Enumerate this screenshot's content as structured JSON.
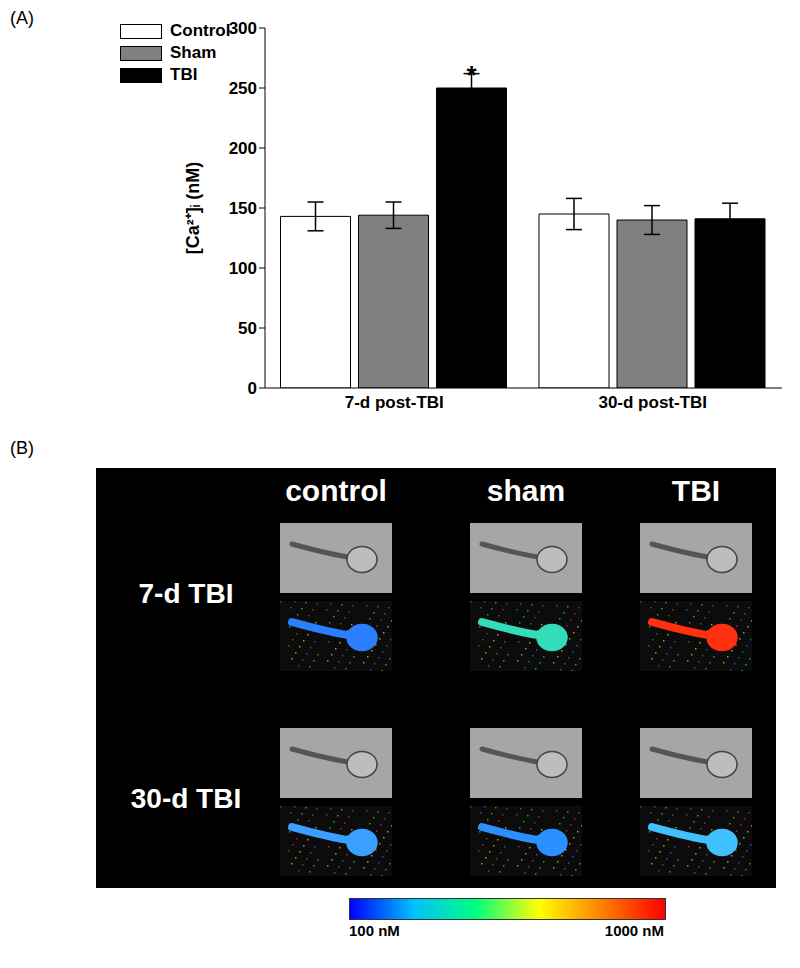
{
  "chart_data": {
    "type": "bar",
    "panel_label": "(A)",
    "y_label": "[Ca²⁺]ᵢ (nM)",
    "categories": [
      "7-d post-TBI",
      "30-d post-TBI"
    ],
    "series": [
      {
        "name": "Control",
        "color": "#ffffff",
        "values": [
          143,
          145
        ],
        "errors": [
          12,
          13
        ]
      },
      {
        "name": "Sham",
        "color": "#808080",
        "values": [
          144,
          140
        ],
        "errors": [
          11,
          12
        ]
      },
      {
        "name": "TBI",
        "color": "#000000",
        "values": [
          250,
          141
        ],
        "errors": [
          12,
          13
        ]
      }
    ],
    "ylim": [
      0,
      300
    ],
    "yticks": [
      0,
      50,
      100,
      150,
      200,
      250,
      300
    ],
    "legend": "upper left",
    "grid": false,
    "annotations": [
      {
        "text": "*",
        "series": "TBI",
        "category": "7-d post-TBI"
      }
    ]
  },
  "image_panel": {
    "panel_label": "(B)",
    "columns": [
      "control",
      "sham",
      "TBI"
    ],
    "rows": [
      "7-d TBI",
      "30-d TBI"
    ],
    "colorbar": {
      "range": [
        100,
        1000
      ],
      "ticks": [
        {
          "value": 100,
          "label": "100 nM"
        },
        {
          "value": 1000,
          "label": "1000 nM"
        }
      ]
    }
  }
}
